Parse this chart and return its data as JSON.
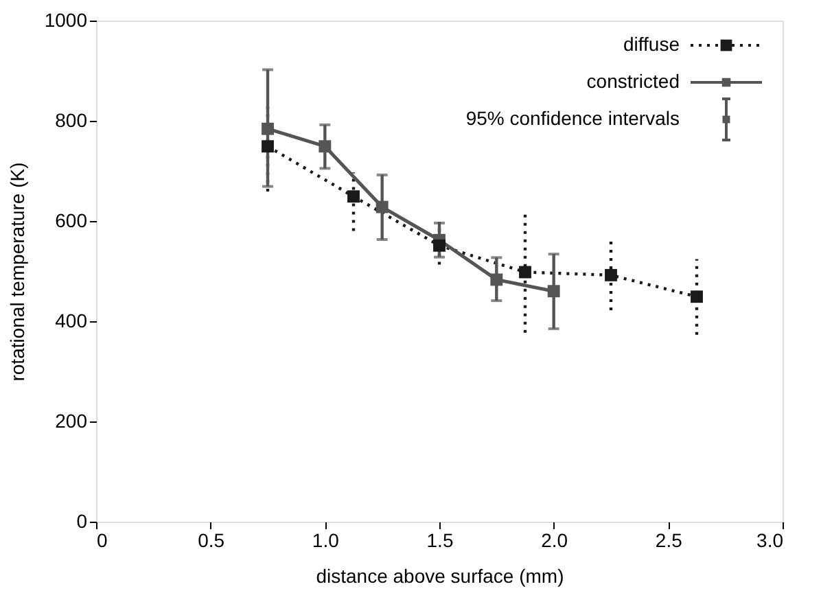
{
  "chart_data": {
    "type": "line",
    "xlabel": "distance above surface (mm)",
    "ylabel": "rotational temperature (K)",
    "xlim": [
      0,
      3.0
    ],
    "xticks": [
      0,
      {
        "value": 0.5,
        "label": "0.5"
      },
      {
        "value": 1,
        "label": "1.0"
      },
      {
        "value": 1.5,
        "label": "1.5"
      },
      {
        "value": 2,
        "label": "2.0"
      },
      {
        "value": 2.5,
        "label": "2.5"
      },
      {
        "value": 3,
        "label": "3.0"
      }
    ],
    "ylim": [
      0,
      1000
    ],
    "yticks": [
      0,
      200,
      400,
      600,
      800,
      1000
    ],
    "grid": false,
    "legend": "top right",
    "marker": "square",
    "annotations": [
      "95% confidence intervals"
    ],
    "series": [
      {
        "name": "diffuse",
        "color": "#1a1a1a",
        "line_style": "dotted",
        "x": [
          0.75,
          1.125,
          1.5,
          1.875,
          2.25,
          2.625
        ],
        "values": [
          749,
          649,
          551,
          498,
          492,
          449
        ],
        "errors": [
          [
            659,
            840
          ],
          [
            580,
            697
          ],
          [
            513,
            598
          ],
          [
            377,
            617
          ],
          [
            422,
            559
          ],
          [
            373,
            524
          ]
        ]
      },
      {
        "name": "constricted",
        "color": "#555555",
        "line_style": "solid",
        "x": [
          0.75,
          1.0,
          1.25,
          1.5,
          1.75,
          2.0
        ],
        "values": [
          784,
          749,
          628,
          562,
          483,
          460
        ],
        "errors": [
          [
            669,
            902
          ],
          [
            705,
            792
          ],
          [
            563,
            692
          ],
          [
            528,
            596
          ],
          [
            441,
            527
          ],
          [
            385,
            534
          ]
        ]
      }
    ]
  }
}
